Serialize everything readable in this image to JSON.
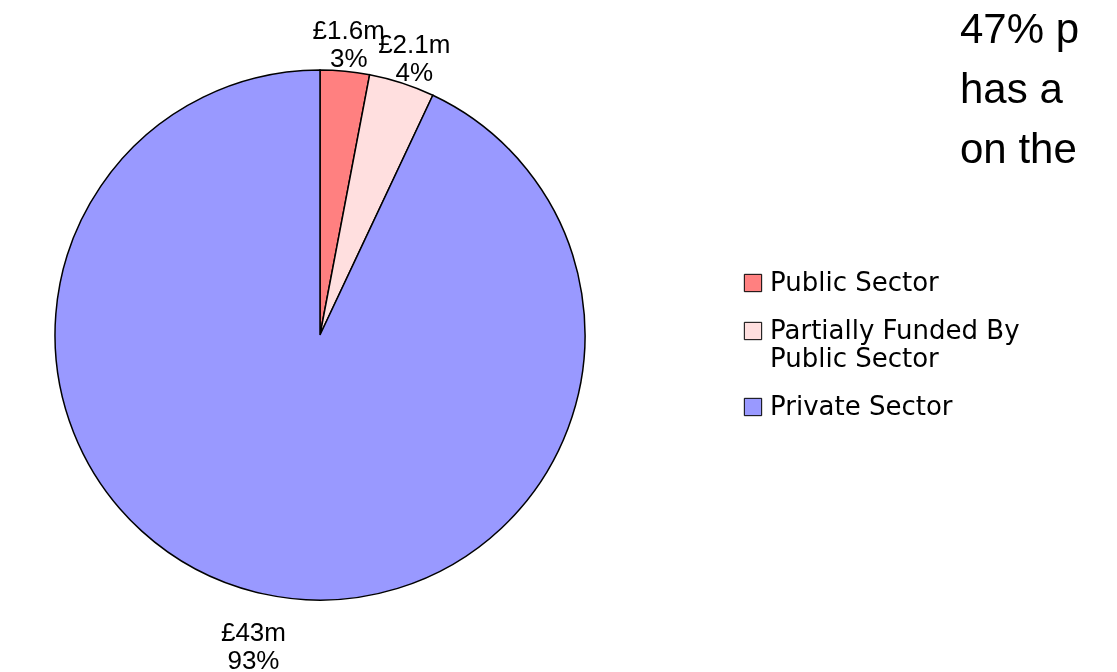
{
  "chart_data": {
    "type": "pie",
    "categories": [
      "Public Sector",
      "Partially Funded By Public Sector",
      "Private Sector"
    ],
    "values": [
      3,
      4,
      93
    ],
    "colors": [
      "#ff8080",
      "#ffdfdf",
      "#9999ff"
    ],
    "value_labels": [
      "£1.6m\n3%",
      "£2.1m\n4%",
      "£43m\n93%"
    ],
    "annotations": [
      "47% p",
      "has a",
      "on the"
    ],
    "legend": "right"
  }
}
